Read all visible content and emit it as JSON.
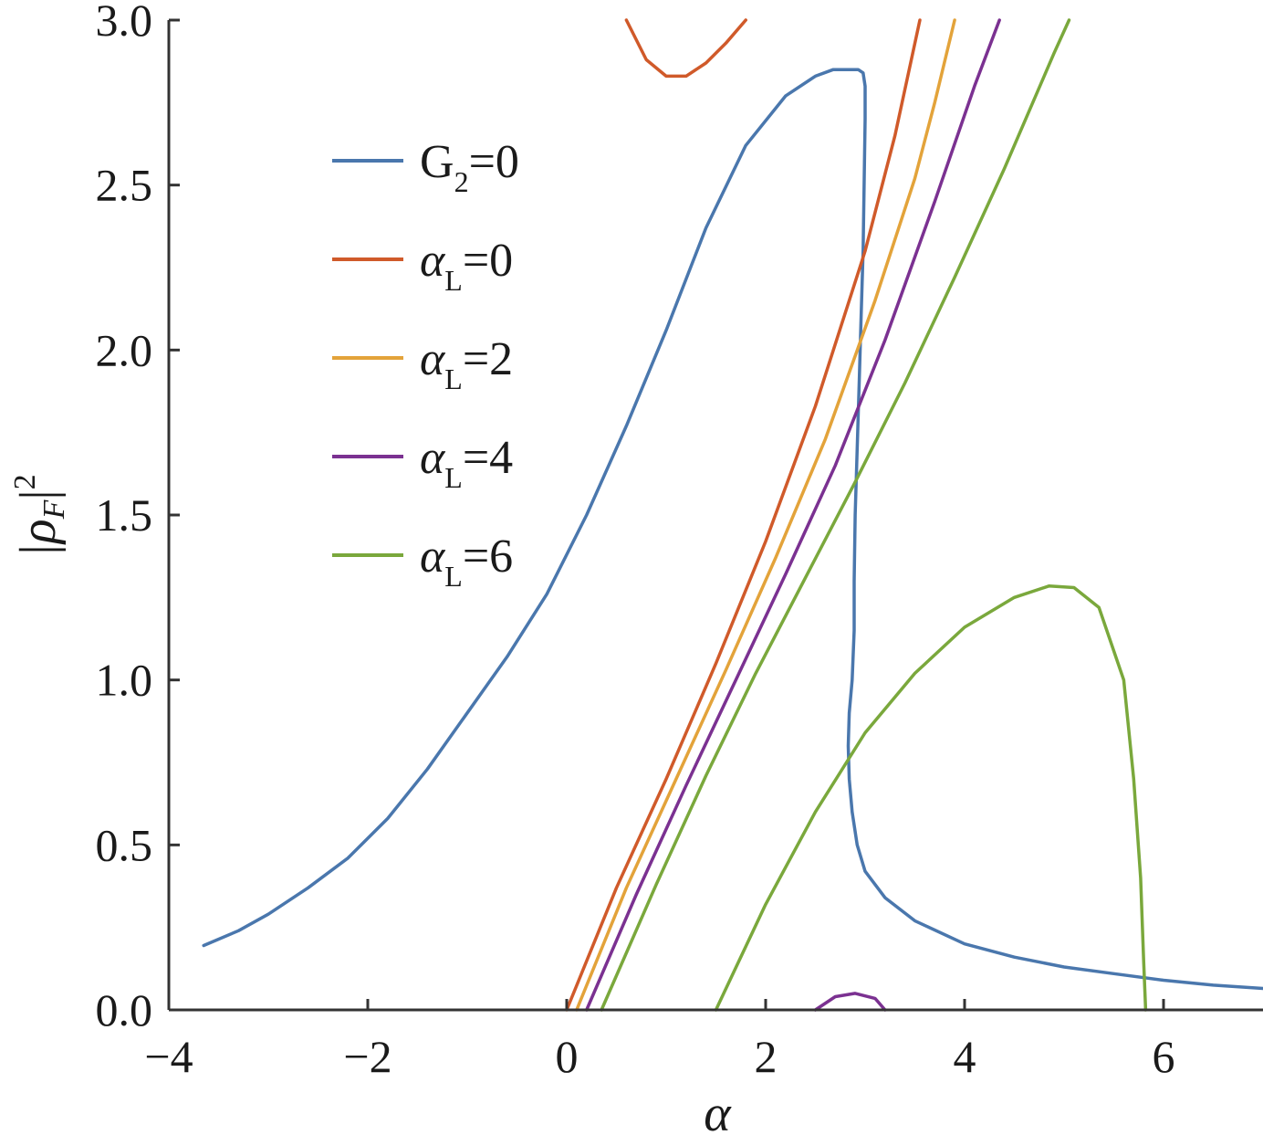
{
  "chart_data": {
    "type": "line",
    "title": "",
    "xlabel": "α",
    "ylabel_parts": {
      "base": "|ρ",
      "sub": "F",
      "close": "|",
      "sup": "2"
    },
    "xlim": [
      -4,
      7
    ],
    "ylim": [
      0,
      3
    ],
    "x_ticks": [
      -4,
      -2,
      0,
      2,
      4,
      6
    ],
    "x_tick_labels": [
      "−4",
      "−2",
      "0",
      "2",
      "4",
      "6"
    ],
    "y_ticks": [
      0,
      0.5,
      1.0,
      1.5,
      2.0,
      2.5,
      3.0
    ],
    "y_tick_labels": [
      "0.0",
      "0.5",
      "1.0",
      "1.5",
      "2.0",
      "2.5",
      "3.0"
    ],
    "grid": false,
    "legend_position": "upper-left",
    "series": [
      {
        "name": "G₂=0",
        "legend": {
          "base": "G",
          "sub": "2",
          "rest": "=0"
        },
        "color": "#4a77ad",
        "segments": [
          [
            [
              -3.65,
              0.195
            ],
            [
              -3.3,
              0.24
            ],
            [
              -3.0,
              0.29
            ],
            [
              -2.6,
              0.37
            ],
            [
              -2.2,
              0.46
            ],
            [
              -1.8,
              0.58
            ],
            [
              -1.4,
              0.73
            ],
            [
              -1.0,
              0.9
            ],
            [
              -0.6,
              1.07
            ],
            [
              -0.2,
              1.26
            ],
            [
              0.2,
              1.5
            ],
            [
              0.6,
              1.77
            ],
            [
              1.0,
              2.06
            ],
            [
              1.4,
              2.37
            ],
            [
              1.8,
              2.62
            ],
            [
              2.2,
              2.77
            ],
            [
              2.5,
              2.83
            ],
            [
              2.68,
              2.85
            ],
            [
              2.93,
              2.85
            ],
            [
              2.98,
              2.84
            ],
            [
              3.0,
              2.8
            ],
            [
              3.0,
              2.7
            ],
            [
              2.99,
              2.5
            ],
            [
              2.98,
              2.3
            ],
            [
              2.96,
              2.1
            ],
            [
              2.94,
              1.9
            ],
            [
              2.92,
              1.7
            ],
            [
              2.9,
              1.5
            ],
            [
              2.89,
              1.3
            ],
            [
              2.89,
              1.15
            ],
            [
              2.87,
              1.0
            ],
            [
              2.84,
              0.9
            ],
            [
              2.83,
              0.8
            ],
            [
              2.84,
              0.7
            ],
            [
              2.87,
              0.6
            ],
            [
              2.92,
              0.5
            ],
            [
              3.0,
              0.42
            ],
            [
              3.2,
              0.34
            ],
            [
              3.5,
              0.27
            ],
            [
              4.0,
              0.2
            ],
            [
              4.5,
              0.16
            ],
            [
              5.0,
              0.13
            ],
            [
              5.5,
              0.11
            ],
            [
              6.0,
              0.09
            ],
            [
              6.5,
              0.075
            ],
            [
              7.0,
              0.065
            ]
          ]
        ]
      },
      {
        "name": "αL=0",
        "legend": {
          "base": "α",
          "sub": "L",
          "rest": "=0"
        },
        "color": "#d05a2a",
        "segments": [
          [
            [
              0.0,
              0.0
            ],
            [
              0.5,
              0.37
            ],
            [
              1.0,
              0.7
            ],
            [
              1.5,
              1.05
            ],
            [
              2.0,
              1.42
            ],
            [
              2.5,
              1.83
            ],
            [
              3.0,
              2.3
            ],
            [
              3.3,
              2.65
            ],
            [
              3.55,
              3.0
            ]
          ],
          [
            [
              0.6,
              3.0
            ],
            [
              0.8,
              2.88
            ],
            [
              1.0,
              2.83
            ],
            [
              1.2,
              2.83
            ],
            [
              1.4,
              2.87
            ],
            [
              1.6,
              2.93
            ],
            [
              1.8,
              3.0
            ]
          ]
        ]
      },
      {
        "name": "αL=2",
        "legend": {
          "base": "α",
          "sub": "L",
          "rest": "=2"
        },
        "color": "#e3a33a",
        "segments": [
          [
            [
              0.1,
              0.0
            ],
            [
              0.6,
              0.37
            ],
            [
              1.1,
              0.7
            ],
            [
              1.6,
              1.03
            ],
            [
              2.1,
              1.37
            ],
            [
              2.6,
              1.73
            ],
            [
              3.1,
              2.15
            ],
            [
              3.5,
              2.52
            ],
            [
              3.7,
              2.75
            ],
            [
              3.9,
              3.0
            ]
          ]
        ]
      },
      {
        "name": "αL=4",
        "legend": {
          "base": "α",
          "sub": "L",
          "rest": "=4"
        },
        "color": "#7b3191",
        "segments": [
          [
            [
              0.2,
              0.0
            ],
            [
              0.7,
              0.35
            ],
            [
              1.2,
              0.68
            ],
            [
              1.7,
              1.0
            ],
            [
              2.2,
              1.32
            ],
            [
              2.7,
              1.65
            ],
            [
              3.2,
              2.03
            ],
            [
              3.7,
              2.45
            ],
            [
              4.1,
              2.8
            ],
            [
              4.35,
              3.0
            ]
          ],
          [
            [
              2.5,
              0.0
            ],
            [
              2.7,
              0.04
            ],
            [
              2.9,
              0.05
            ],
            [
              3.1,
              0.035
            ],
            [
              3.2,
              0.0
            ]
          ]
        ]
      },
      {
        "name": "αL=6",
        "legend": {
          "base": "α",
          "sub": "L",
          "rest": "=6"
        },
        "color": "#7aa83c",
        "segments": [
          [
            [
              0.35,
              0.0
            ],
            [
              0.9,
              0.38
            ],
            [
              1.4,
              0.71
            ],
            [
              1.9,
              1.02
            ],
            [
              2.4,
              1.31
            ],
            [
              2.9,
              1.6
            ],
            [
              3.4,
              1.9
            ],
            [
              3.9,
              2.22
            ],
            [
              4.4,
              2.55
            ],
            [
              4.9,
              2.9
            ],
            [
              5.05,
              3.0
            ]
          ],
          [
            [
              1.5,
              0.0
            ],
            [
              2.0,
              0.32
            ],
            [
              2.5,
              0.6
            ],
            [
              3.0,
              0.84
            ],
            [
              3.5,
              1.02
            ],
            [
              4.0,
              1.16
            ],
            [
              4.5,
              1.25
            ],
            [
              4.85,
              1.285
            ],
            [
              5.1,
              1.28
            ],
            [
              5.35,
              1.22
            ],
            [
              5.6,
              1.0
            ],
            [
              5.7,
              0.7
            ],
            [
              5.77,
              0.4
            ],
            [
              5.8,
              0.15
            ],
            [
              5.82,
              0.0
            ]
          ]
        ]
      }
    ]
  }
}
